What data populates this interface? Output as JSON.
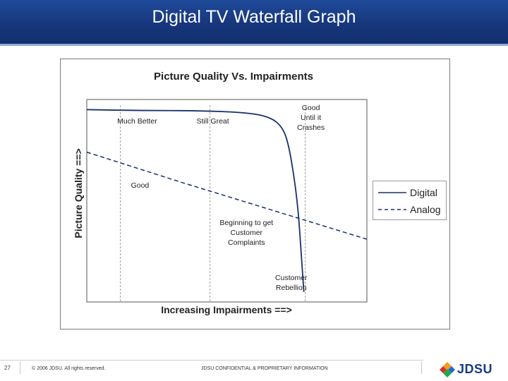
{
  "slide": {
    "title": "Digital TV Waterfall Graph",
    "page_number": "27",
    "copyright": "© 2006 JDSU. All rights reserved.",
    "confidential": "JDSU CONFIDENTIAL & PROPRIETARY INFORMATION",
    "logo_text": "JDSU",
    "header_color": "#1f4a9a"
  },
  "chart_data": {
    "type": "line",
    "title": "Picture Quality Vs. Impairments",
    "xlabel": "Increasing Impairments ==>",
    "ylabel": "Picture Quality ==>",
    "xlim": [
      0,
      100
    ],
    "ylim": [
      0,
      100
    ],
    "grid": "vertical dashed region dividers",
    "legend_position": "right",
    "series": [
      {
        "name": "Digital",
        "style": "solid",
        "color": "#1a2f6e",
        "points": [
          [
            0,
            95
          ],
          [
            20,
            94.5
          ],
          [
            40,
            94.5
          ],
          [
            58,
            93.5
          ],
          [
            66,
            91
          ],
          [
            70,
            86
          ],
          [
            72,
            78
          ],
          [
            74,
            62
          ],
          [
            75.5,
            45
          ],
          [
            76.5,
            25
          ],
          [
            77.5,
            5
          ]
        ]
      },
      {
        "name": "Analog",
        "style": "dashed",
        "color": "#1a2f6e",
        "points": [
          [
            0,
            74
          ],
          [
            34,
            59
          ],
          [
            100,
            31
          ]
        ]
      }
    ],
    "annotations": [
      {
        "text": "Much Better",
        "x": 18
      },
      {
        "text": "Still Great",
        "x": 45
      },
      {
        "text": "Good\nUntil it\nCrashes",
        "x": 80
      },
      {
        "text": "Good",
        "x": 19
      },
      {
        "text": "Beginning to get\nCustomer\nComplaints",
        "x": 57
      },
      {
        "text": "Customer\nRebellion",
        "x": 73
      }
    ],
    "regions_x": [
      12,
      44,
      78
    ]
  }
}
